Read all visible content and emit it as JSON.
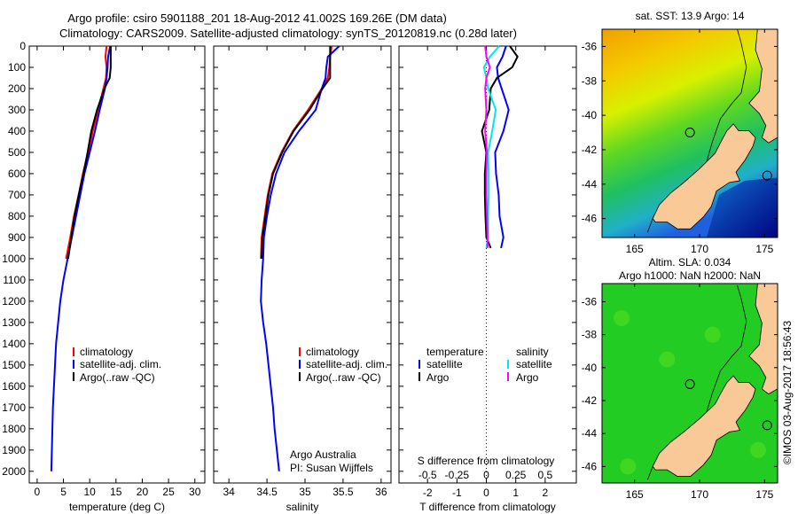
{
  "title": {
    "line1": "Argo profile: csiro 5901188_201 18-Aug-2012 41.002S 169.26E (DM data)",
    "line2": "Climatology: CARS2009. Satellite-adjusted climatology: synTS_20120819.nc (0.28d later)"
  },
  "colors": {
    "climatology": "#ff0000",
    "satellite": "#0000ff",
    "argo": "#000000",
    "s_satellite": "#00e5ee",
    "s_argo": "#ff00ff"
  },
  "credit": {
    "line1": "Argo Australia",
    "line2": "PI: Susan Wijffels"
  },
  "watermark": "©IMOS 03-Aug-2017 18:56:43",
  "chart_data": [
    {
      "type": "line",
      "name": "temperature-profile",
      "xlabel": "temperature (deg C)",
      "ylabel": "",
      "xlim": [
        -1.5,
        31.9
      ],
      "ylim": [
        0,
        2055
      ],
      "y_reversed": true,
      "xticks": [
        0,
        5,
        10,
        15,
        20,
        25,
        30
      ],
      "yticks": [
        0,
        100,
        200,
        300,
        400,
        500,
        600,
        700,
        800,
        900,
        1000,
        1100,
        1200,
        1300,
        1400,
        1500,
        1600,
        1700,
        1800,
        1900,
        2000
      ],
      "legend": [
        "climatology",
        "satellite-adj. clim.",
        "Argo(..raw -QC)"
      ],
      "series": [
        {
          "name": "climatology",
          "color": "#ff0000",
          "depth": [
            0,
            50,
            100,
            150,
            200,
            300,
            400,
            500,
            600,
            700,
            800,
            900,
            1000
          ],
          "values": [
            13.2,
            13.0,
            13.2,
            13.1,
            12.6,
            11.6,
            10.6,
            9.7,
            8.7,
            7.9,
            7.0,
            6.3,
            5.5
          ]
        },
        {
          "name": "satellite-adj. clim.",
          "color": "#0000ff",
          "depth": [
            0,
            50,
            100,
            150,
            200,
            300,
            400,
            500,
            600,
            700,
            800,
            900,
            1000,
            1100,
            1200,
            1300,
            1400,
            1500,
            1600,
            1700,
            1800,
            1900,
            2000
          ],
          "values": [
            13.9,
            13.5,
            13.4,
            13.2,
            12.9,
            11.9,
            11.0,
            10.0,
            9.0,
            8.2,
            7.4,
            6.6,
            5.8,
            5.0,
            4.4,
            4.0,
            3.6,
            3.4,
            3.2,
            3.0,
            2.9,
            2.8,
            2.7
          ]
        },
        {
          "name": "Argo(..raw -QC)",
          "color": "#000000",
          "depth": [
            0,
            50,
            100,
            150,
            200,
            300,
            400,
            500,
            600,
            700,
            800,
            900,
            1000
          ],
          "values": [
            14.0,
            14.0,
            14.0,
            13.8,
            12.8,
            11.4,
            10.3,
            9.6,
            8.8,
            7.9,
            7.1,
            6.5,
            5.9
          ]
        }
      ]
    },
    {
      "type": "line",
      "name": "salinity-profile",
      "xlabel": "salinity",
      "ylabel": "",
      "xlim": [
        33.8,
        36.13
      ],
      "ylim": [
        0,
        2055
      ],
      "y_reversed": true,
      "xticks": [
        34,
        34.5,
        35,
        35.5,
        36
      ],
      "legend": [
        "climatology",
        "satellite-adj. clim.",
        "Argo(..raw -QC)"
      ],
      "series": [
        {
          "name": "climatology",
          "color": "#ff0000",
          "depth": [
            0,
            50,
            100,
            150,
            200,
            300,
            400,
            500,
            600,
            700,
            800,
            900,
            1000
          ],
          "values": [
            35.35,
            35.33,
            35.32,
            35.3,
            35.22,
            35.04,
            34.84,
            34.69,
            34.57,
            34.51,
            34.47,
            34.43,
            34.42
          ]
        },
        {
          "name": "satellite-adj. clim.",
          "color": "#0000ff",
          "depth": [
            0,
            50,
            100,
            150,
            200,
            300,
            400,
            500,
            600,
            700,
            800,
            900,
            1000,
            1100,
            1200,
            1300,
            1400,
            1500,
            1600,
            1700,
            1800,
            1900,
            2000
          ],
          "values": [
            35.45,
            35.3,
            35.28,
            35.27,
            35.22,
            35.14,
            34.92,
            34.73,
            34.62,
            34.55,
            34.5,
            34.46,
            34.45,
            34.43,
            34.42,
            34.45,
            34.49,
            34.52,
            34.55,
            34.58,
            34.6,
            34.63,
            34.66
          ]
        },
        {
          "name": "Argo(..raw -QC)",
          "color": "#000000",
          "depth": [
            0,
            50,
            100,
            150,
            200,
            300,
            400,
            500,
            600,
            700,
            800,
            900,
            1000
          ],
          "values": [
            35.33,
            35.33,
            35.33,
            35.33,
            35.23,
            35.06,
            34.85,
            34.7,
            34.58,
            34.52,
            34.48,
            34.44,
            34.43
          ]
        }
      ]
    },
    {
      "type": "line",
      "name": "difference-profile",
      "xlabel": "T difference from climatology",
      "x2label": "S difference from climatology",
      "xlim": [
        -2.97,
        3.06
      ],
      "ylim": [
        0,
        2055
      ],
      "y_reversed": true,
      "xticks": [
        -2,
        -1,
        0,
        1,
        2
      ],
      "x2ticks": [
        "-0.5",
        "-0.25",
        "0",
        "0.25",
        "0.5"
      ],
      "x2_to_x_factor": 4,
      "legend_temperature": {
        "heading": "temperature",
        "items": [
          "satellite",
          "Argo"
        ]
      },
      "legend_salinity": {
        "heading": "salinity",
        "items": [
          "satellite",
          "Argo"
        ]
      },
      "series": [
        {
          "name": "T satellite",
          "color": "#0000ff",
          "depth": [
            0,
            50,
            100,
            150,
            200,
            300,
            400,
            500,
            600,
            700,
            800,
            900,
            950
          ],
          "values": [
            0.67,
            0.55,
            0.36,
            0.4,
            0.52,
            0.76,
            0.58,
            0.3,
            0.33,
            0.42,
            0.45,
            0.58,
            0.5
          ]
        },
        {
          "name": "T Argo",
          "color": "#000000",
          "depth": [
            0,
            50,
            100,
            150,
            200,
            300,
            400,
            500,
            600,
            700,
            800,
            900,
            950
          ],
          "values": [
            0.8,
            1.06,
            0.88,
            0.36,
            0.15,
            0.1,
            -0.15,
            0.0,
            -0.05,
            -0.05,
            -0.03,
            0.0,
            0.15
          ]
        },
        {
          "name": "S satellite",
          "color": "#00e5ee",
          "depth": [
            0,
            50,
            100,
            150,
            200,
            300,
            400,
            500,
            600,
            700,
            800,
            900,
            950
          ],
          "values": [
            0.11,
            0.03,
            -0.02,
            0.0,
            0.015,
            0.08,
            0.05,
            0.015,
            0.02,
            0.02,
            0.015,
            0.015,
            0.0
          ]
        },
        {
          "name": "S Argo",
          "color": "#ff00ff",
          "depth": [
            0,
            50,
            100,
            150,
            200,
            300,
            400,
            500,
            600,
            700,
            800,
            900,
            950
          ],
          "values": [
            -0.01,
            0.0,
            0.03,
            0.0,
            -0.01,
            0.0,
            -0.01,
            0.005,
            0.0,
            0.0,
            0.005,
            0.01,
            0.01
          ]
        }
      ]
    },
    {
      "type": "heatmap",
      "name": "sst-map",
      "title": "sat. SST: 13.9 Argo: 14",
      "xlim": [
        162.5,
        176
      ],
      "ylim": [
        -47.1,
        -35
      ],
      "xticks": [
        165,
        170,
        175
      ],
      "yticks": [
        -36,
        -38,
        -40,
        -42,
        -44,
        -46
      ],
      "argo_position": {
        "lon": 169.26,
        "lat": -41.0
      }
    },
    {
      "type": "heatmap",
      "name": "sla-map",
      "title": "Altim. SLA: 0.034",
      "subtitle": "Argo h1000: NaN h2000: NaN",
      "xlim": [
        162.5,
        176
      ],
      "ylim": [
        -47.0,
        -34.9
      ],
      "xticks": [
        165,
        170,
        175
      ],
      "yticks": [
        -36,
        -38,
        -40,
        -42,
        -44,
        -46
      ],
      "argo_position": {
        "lon": 169.26,
        "lat": -41.0
      }
    }
  ]
}
